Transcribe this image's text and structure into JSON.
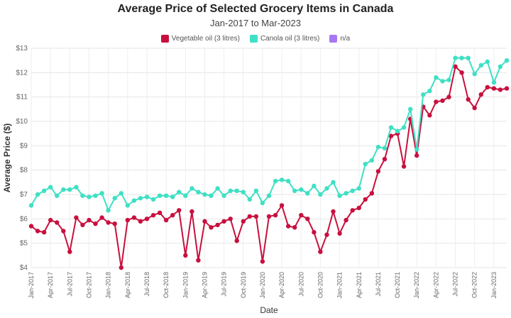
{
  "chart_data": {
    "type": "line",
    "title": "Average Price of Selected Grocery Items in Canada",
    "subtitle": "Jan-2017 to Mar-2023",
    "xlabel": "Date",
    "ylabel": "Average Price ($)",
    "ylim": [
      4,
      13
    ],
    "yticks": [
      "$4",
      "$5",
      "$6",
      "$7",
      "$8",
      "$9",
      "$10",
      "$11",
      "$12",
      "$13"
    ],
    "grid": true,
    "legend_position": "top-center",
    "x_tick_labels": [
      "Jan-2017",
      "Apr-2017",
      "Jul-2017",
      "Oct-2017",
      "Jan-2018",
      "Apr-2018",
      "Jul-2018",
      "Oct-2018",
      "Jan-2019",
      "Apr-2019",
      "Jul-2019",
      "Oct-2019",
      "Jan-2020",
      "Apr-2020",
      "Jul-2020",
      "Oct-2020",
      "Jan-2021",
      "Apr-2021",
      "Jul-2021",
      "Oct-2021",
      "Jan-2022",
      "Apr-2022",
      "Jul-2022",
      "Oct-2022",
      "Jan-2023"
    ],
    "x_start": "Jan-2017",
    "x_end": "Mar-2023",
    "series": [
      {
        "name": "Vegetable oil (3 litres)",
        "color": "#c8103e",
        "values": [
          5.7,
          5.5,
          5.45,
          5.95,
          5.85,
          5.5,
          4.65,
          6.05,
          5.75,
          5.95,
          5.8,
          6.05,
          5.85,
          5.8,
          4.0,
          5.95,
          6.05,
          5.9,
          6.0,
          6.15,
          6.25,
          5.95,
          6.15,
          6.35,
          4.5,
          6.3,
          4.3,
          5.9,
          5.65,
          5.75,
          5.9,
          6.0,
          5.1,
          5.9,
          6.1,
          6.1,
          4.25,
          6.1,
          6.15,
          6.55,
          5.7,
          5.65,
          6.15,
          6.0,
          5.45,
          4.65,
          5.35,
          6.3,
          5.4,
          5.95,
          6.35,
          6.45,
          6.8,
          7.05,
          7.95,
          8.45,
          9.4,
          9.5,
          8.15,
          10.1,
          8.6,
          10.6,
          10.25,
          10.8,
          10.85,
          11.0,
          12.25,
          12.0,
          10.9,
          10.55,
          11.1,
          11.4,
          11.35,
          11.3,
          11.35
        ]
      },
      {
        "name": "Canola oil (3 litres)",
        "color": "#3fe0c4",
        "values": [
          6.55,
          7.0,
          7.15,
          7.3,
          6.95,
          7.2,
          7.2,
          7.3,
          6.95,
          6.9,
          6.95,
          7.05,
          6.35,
          6.85,
          7.05,
          6.55,
          6.75,
          6.85,
          6.9,
          6.8,
          6.95,
          6.95,
          6.9,
          7.1,
          6.95,
          7.25,
          7.1,
          7.0,
          6.95,
          7.25,
          6.95,
          7.15,
          7.15,
          7.1,
          6.8,
          7.15,
          6.65,
          6.95,
          7.55,
          7.6,
          7.55,
          7.15,
          7.2,
          7.05,
          7.35,
          7.0,
          7.25,
          7.5,
          6.95,
          7.05,
          7.15,
          7.25,
          8.25,
          8.4,
          8.95,
          8.9,
          9.75,
          9.6,
          9.75,
          10.5,
          8.85,
          11.1,
          11.25,
          11.8,
          11.65,
          11.7,
          12.6,
          12.6,
          12.6,
          11.95,
          12.3,
          12.45,
          11.6,
          12.25,
          12.5
        ]
      },
      {
        "name": "n/a",
        "color": "#a678f2",
        "values": []
      }
    ]
  }
}
